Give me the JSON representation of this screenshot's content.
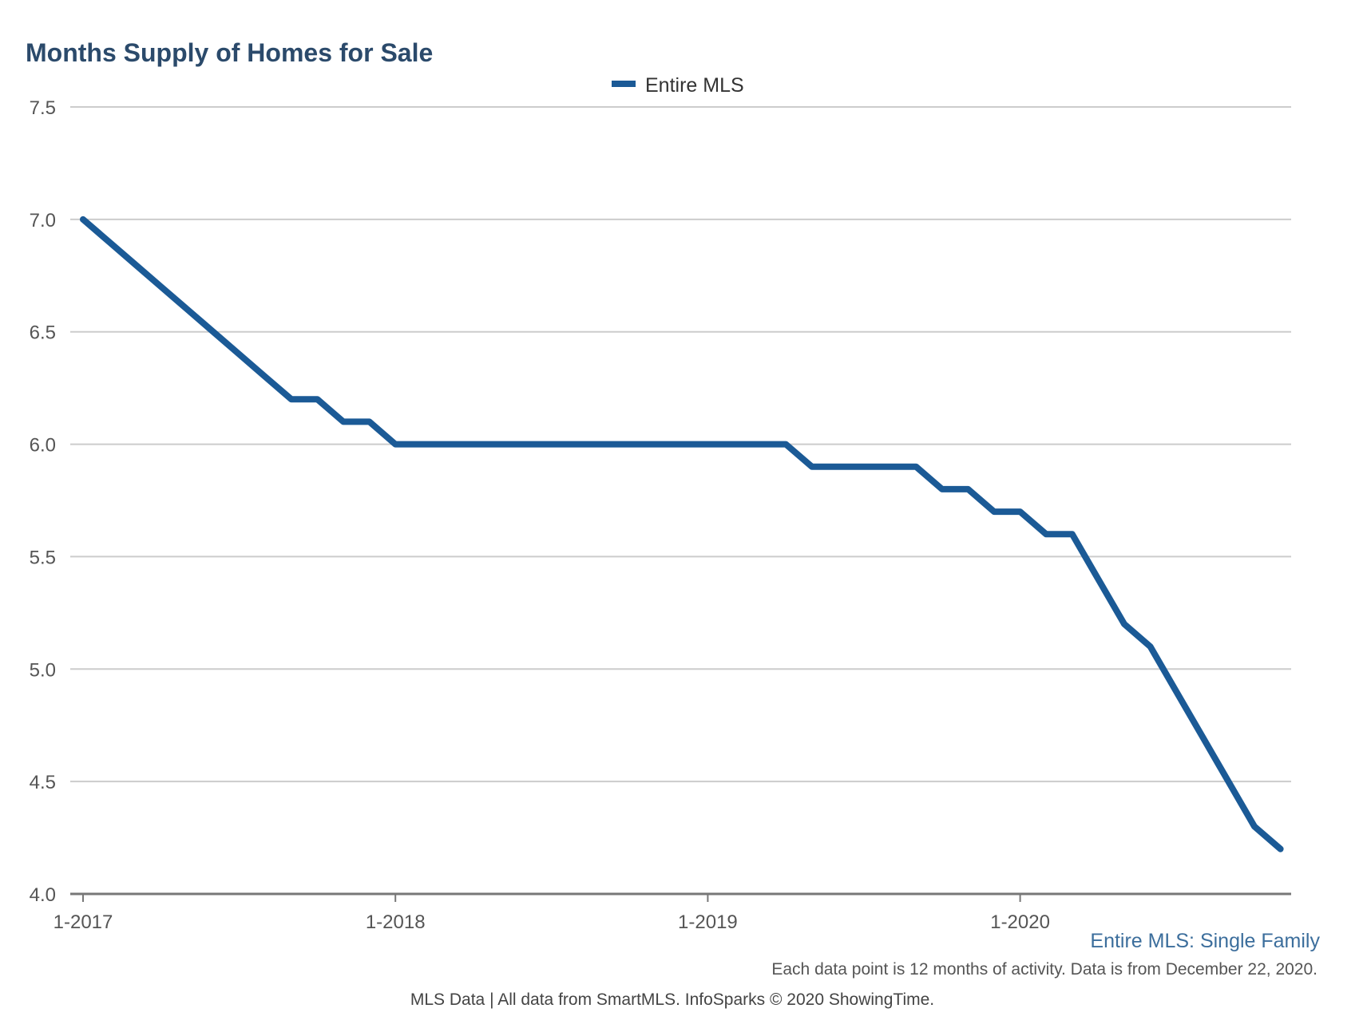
{
  "colors": {
    "title": "#2b4a6b",
    "series": "#1b5a96",
    "grid": "#cccccc",
    "axis": "#777777",
    "subtitle": "#3c6e9c"
  },
  "chart_data": {
    "type": "line",
    "title": "Months Supply of Homes for Sale",
    "xlabel": "",
    "ylabel": "",
    "ylim": [
      4.0,
      7.5
    ],
    "yticks": [
      {
        "value": 4.0,
        "label": "4.0"
      },
      {
        "value": 4.5,
        "label": "4.5"
      },
      {
        "value": 5.0,
        "label": "5.0"
      },
      {
        "value": 5.5,
        "label": "5.5"
      },
      {
        "value": 6.0,
        "label": "6.0"
      },
      {
        "value": 6.5,
        "label": "6.5"
      },
      {
        "value": 7.0,
        "label": "7.0"
      },
      {
        "value": 7.5,
        "label": "7.5"
      }
    ],
    "xticks": [
      {
        "index": 0,
        "label": "1-2017"
      },
      {
        "index": 12,
        "label": "1-2018"
      },
      {
        "index": 24,
        "label": "1-2019"
      },
      {
        "index": 36,
        "label": "1-2020"
      }
    ],
    "x_index_max": 46.5,
    "legend": {
      "position": "top-center"
    },
    "series": [
      {
        "name": "Entire MLS",
        "values": [
          7.0,
          6.9,
          6.8,
          6.7,
          6.6,
          6.5,
          6.4,
          6.3,
          6.2,
          6.2,
          6.1,
          6.1,
          6.0,
          6.0,
          6.0,
          6.0,
          6.0,
          6.0,
          6.0,
          6.0,
          6.0,
          6.0,
          6.0,
          6.0,
          6.0,
          6.0,
          6.0,
          6.0,
          5.9,
          5.9,
          5.9,
          5.9,
          5.9,
          5.8,
          5.8,
          5.7,
          5.7,
          5.6,
          5.6,
          5.4,
          5.2,
          5.1,
          4.9,
          4.7,
          4.5,
          4.3,
          4.2
        ]
      }
    ],
    "subtitle": "Entire MLS: Single Family",
    "note": "Each data point is 12 months of activity. Data is from December 22, 2020.",
    "source": "MLS Data | All data from SmartMLS. InfoSparks © 2020 ShowingTime."
  }
}
